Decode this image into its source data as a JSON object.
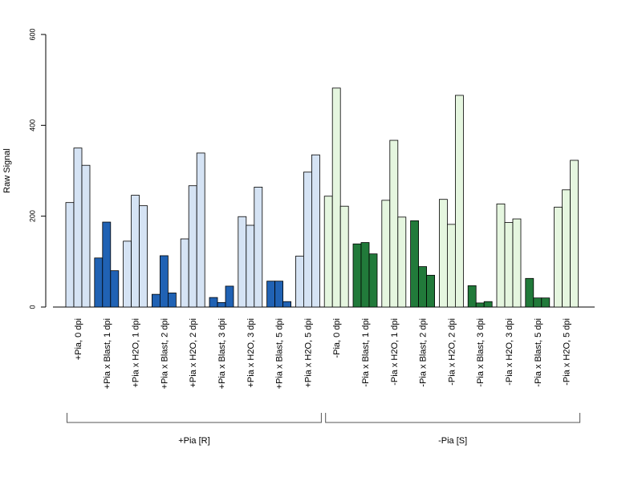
{
  "chart_data": {
    "type": "bar",
    "title": "",
    "xlabel": "",
    "ylabel": "Raw Signal",
    "ylim": [
      0,
      600
    ],
    "yticks": [
      0,
      200,
      400,
      600
    ],
    "grid": false,
    "legend": "none",
    "categories": [
      "+Pia, 0 dpi",
      "+Pia x Blast, 1 dpi",
      "+Pia x H2O, 1 dpi",
      "+Pia x Blast, 2 dpi",
      "+Pia x H2O, 2 dpi",
      "+Pia x Blast, 3 dpi",
      "+Pia x H2O, 3 dpi",
      "+Pia x Blast, 5 dpi",
      "+Pia x H2O, 5 dpi",
      "-Pia, 0 dpi",
      "-Pia x Blast, 1 dpi",
      "-Pia x H2O, 1 dpi",
      "-Pia x Blast, 2 dpi",
      "-Pia x H2O, 2 dpi",
      "-Pia x Blast, 3 dpi",
      "-Pia x H2O, 3 dpi",
      "-Pia x Blast, 5 dpi",
      "-Pia x H2O, 5 dpi"
    ],
    "replicates": [
      [
        230,
        350,
        312
      ],
      [
        108,
        187,
        80
      ],
      [
        145,
        246,
        223
      ],
      [
        28,
        113,
        31
      ],
      [
        150,
        267,
        339
      ],
      [
        21,
        10,
        46
      ],
      [
        199,
        180,
        264
      ],
      [
        57,
        57,
        12
      ],
      [
        112,
        297,
        335
      ],
      [
        244,
        482,
        222
      ],
      [
        139,
        142,
        117
      ],
      [
        235,
        367,
        198
      ],
      [
        190,
        89,
        70
      ],
      [
        237,
        182,
        466
      ],
      [
        47,
        9,
        12
      ],
      [
        227,
        186,
        194
      ],
      [
        63,
        20,
        20
      ],
      [
        220,
        258,
        323
      ]
    ],
    "bar_colors": [
      "#d5e3f4",
      "#2062b4",
      "#d5e3f4",
      "#2062b4",
      "#d5e3f4",
      "#2062b4",
      "#d5e3f4",
      "#2062b4",
      "#d5e3f4",
      "#e5f6df",
      "#217a3a",
      "#e5f6df",
      "#217a3a",
      "#e5f6df",
      "#217a3a",
      "#e5f6df",
      "#217a3a",
      "#e5f6df"
    ],
    "groups": [
      {
        "label": "+Pia [R]",
        "from": 0,
        "to": 8
      },
      {
        "label": "-Pia [S]",
        "from": 9,
        "to": 17
      }
    ]
  }
}
